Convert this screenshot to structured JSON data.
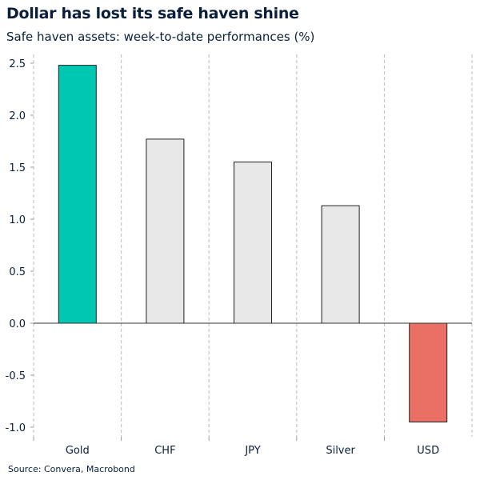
{
  "chart_data": {
    "type": "bar",
    "title": "Dollar has lost its safe haven shine",
    "subtitle": "Safe haven assets: week-to-date performances (%)",
    "categories": [
      "Gold",
      "CHF",
      "JPY",
      "Silver",
      "USD"
    ],
    "values": [
      2.48,
      1.77,
      1.55,
      1.13,
      -0.95
    ],
    "colors": [
      "#00c7b1",
      "#e8e8e8",
      "#e8e8e8",
      "#e8e8e8",
      "#ea7066"
    ],
    "ylim": [
      -1.1,
      2.65
    ],
    "yticks": [
      2.5,
      2.0,
      1.5,
      1.0,
      0.5,
      0.0,
      -0.5,
      -1.0
    ],
    "ytick_labels": [
      "2.5",
      "2.0",
      "1.5",
      "1.0",
      "0.5",
      "0.0",
      "-0.5",
      "-1.0"
    ],
    "grid": "vertical dashed between categories",
    "legend": "none",
    "source": "Source: Convera, Macrobond"
  }
}
